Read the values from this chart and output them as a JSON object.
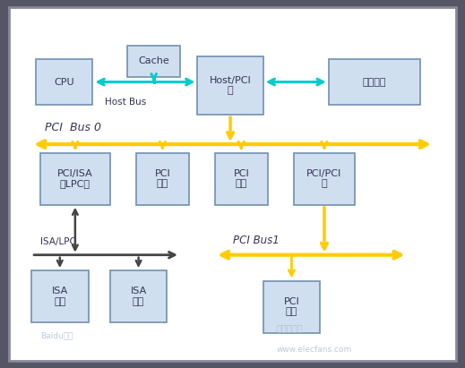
{
  "outer_bg": "#555566",
  "inner_bg": "#ffffff",
  "box_fill": "#d0dff0",
  "box_edge": "#7090b0",
  "host_bus_color": "#00cccc",
  "pci_bus_color": "#ffcc00",
  "isa_bus_color": "#444444",
  "text_color": "#333355",
  "boxes": {
    "CPU": [
      0.05,
      0.73,
      0.13,
      0.13
    ],
    "Cache": [
      0.26,
      0.81,
      0.12,
      0.09
    ],
    "Host_PCI": [
      0.42,
      0.7,
      0.15,
      0.17
    ],
    "Storage": [
      0.72,
      0.73,
      0.21,
      0.13
    ],
    "PCIISA": [
      0.06,
      0.44,
      0.16,
      0.15
    ],
    "PCI_dev1": [
      0.28,
      0.44,
      0.12,
      0.15
    ],
    "PCI_dev2": [
      0.46,
      0.44,
      0.12,
      0.15
    ],
    "PCIPCI": [
      0.64,
      0.44,
      0.14,
      0.15
    ],
    "ISA_dev1": [
      0.04,
      0.1,
      0.13,
      0.15
    ],
    "ISA_dev2": [
      0.22,
      0.1,
      0.13,
      0.15
    ],
    "PCI_dev3": [
      0.57,
      0.07,
      0.13,
      0.15
    ]
  },
  "labels_ascii": {
    "CPU": "CPU",
    "Cache": "Cache",
    "Host_PCI": "Host/PCI",
    "Storage": "",
    "PCIISA": "PCI/ISA",
    "PCI_dev1": "PCI",
    "PCI_dev2": "PCI",
    "PCIPCI": "PCI/PCI",
    "ISA_dev1": "ISA",
    "ISA_dev2": "ISA",
    "PCI_dev3": "PCI"
  },
  "labels_cjk": {
    "CPU": "",
    "Cache": "",
    "Host_PCI": "桥",
    "Storage": "存储模块",
    "PCIISA": "或LPC桥",
    "PCI_dev1": "设备",
    "PCI_dev2": "设备",
    "PCIPCI": "桥",
    "ISA_dev1": "设备",
    "ISA_dev2": "设备",
    "PCI_dev3": "设备"
  },
  "watermark1": "Baidu百度",
  "watermark2": "电子发烧友",
  "watermark3": "www.elecfans.com",
  "fig_w": 5.19,
  "fig_h": 4.11,
  "dpi": 100
}
